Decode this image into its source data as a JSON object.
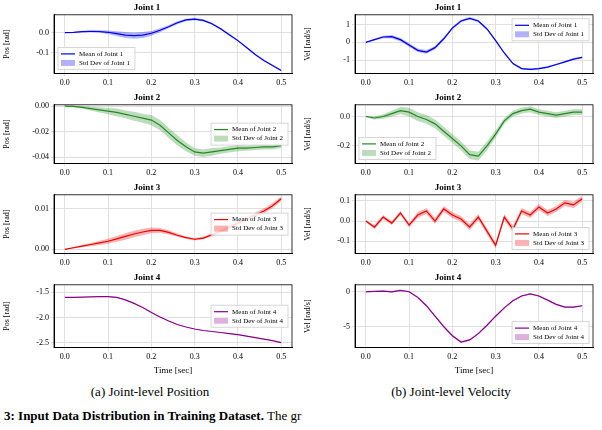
{
  "chart_data": [
    {
      "type": "line",
      "title": "Joint 1",
      "ylabel": "Pos [rad]",
      "x": [
        0,
        0.02,
        0.04,
        0.06,
        0.08,
        0.1,
        0.12,
        0.14,
        0.16,
        0.18,
        0.2,
        0.22,
        0.24,
        0.26,
        0.28,
        0.3,
        0.32,
        0.34,
        0.36,
        0.38,
        0.4,
        0.42,
        0.44,
        0.46,
        0.48,
        0.5
      ],
      "series": [
        {
          "name": "Mean of Joint 1",
          "std_name": "Std Dev of Joint 1",
          "color": "#0000ee",
          "values": [
            0.0,
            0.002,
            0.005,
            0.007,
            0.006,
            0.002,
            -0.005,
            -0.012,
            -0.015,
            -0.012,
            -0.003,
            0.012,
            0.03,
            0.05,
            0.064,
            0.068,
            0.062,
            0.045,
            0.02,
            -0.01,
            -0.04,
            -0.075,
            -0.11,
            -0.14,
            -0.165,
            -0.19
          ],
          "std": [
            0.001,
            0.002,
            0.003,
            0.004,
            0.006,
            0.009,
            0.012,
            0.015,
            0.016,
            0.015,
            0.012,
            0.01,
            0.008,
            0.007,
            0.006,
            0.006,
            0.006,
            0.005,
            0.005,
            0.005,
            0.005,
            0.004,
            0.004,
            0.004,
            0.004,
            0.004
          ]
        }
      ],
      "xlim": [
        -0.025,
        0.525
      ],
      "xticks": [
        {
          "value": 0,
          "label": "0.0"
        },
        0.1,
        0.2,
        0.3,
        0.4,
        0.5
      ],
      "ylim": [
        -0.205,
        0.09
      ],
      "yticks": [
        {
          "value": -0.1,
          "label": "-0.1"
        },
        {
          "value": 0,
          "label": "0.0"
        }
      ],
      "grid": true,
      "legend": "lower left"
    },
    {
      "type": "line",
      "title": "Joint 2",
      "ylabel": "Pos [rad]",
      "x": [
        0,
        0.02,
        0.04,
        0.06,
        0.08,
        0.1,
        0.12,
        0.14,
        0.16,
        0.18,
        0.2,
        0.22,
        0.24,
        0.26,
        0.28,
        0.3,
        0.32,
        0.34,
        0.36,
        0.38,
        0.4,
        0.42,
        0.44,
        0.46,
        0.48,
        0.5
      ],
      "series": [
        {
          "name": "Mean of Joint 2",
          "std_name": "Std Dev of Joint 2",
          "color": "#228b22",
          "values": [
            0.0,
            -0.0003,
            -0.001,
            -0.002,
            -0.003,
            -0.004,
            -0.005,
            -0.0065,
            -0.008,
            -0.0095,
            -0.011,
            -0.015,
            -0.021,
            -0.027,
            -0.032,
            -0.036,
            -0.037,
            -0.036,
            -0.035,
            -0.034,
            -0.033,
            -0.033,
            -0.0325,
            -0.032,
            -0.032,
            -0.031
          ],
          "std": [
            0.0001,
            0.0005,
            0.001,
            0.0015,
            0.002,
            0.0025,
            0.003,
            0.003,
            0.0035,
            0.0035,
            0.004,
            0.004,
            0.004,
            0.004,
            0.0035,
            0.003,
            0.003,
            0.003,
            0.0025,
            0.0025,
            0.0025,
            0.002,
            0.002,
            0.002,
            0.002,
            0.002
          ]
        }
      ],
      "xlim": [
        -0.025,
        0.525
      ],
      "xticks": [
        {
          "value": 0,
          "label": "0.0"
        },
        0.1,
        0.2,
        0.3,
        0.4,
        0.5
      ],
      "ylim": [
        -0.045,
        0.001
      ],
      "yticks": [
        {
          "value": -0.04,
          "label": "-0.04"
        },
        {
          "value": -0.02,
          "label": "-0.02"
        },
        {
          "value": 0,
          "label": "0.00"
        }
      ],
      "grid": true,
      "legend": "right"
    },
    {
      "type": "line",
      "title": "Joint 3",
      "ylabel": "Pos [rad]",
      "x": [
        0,
        0.02,
        0.04,
        0.06,
        0.08,
        0.1,
        0.12,
        0.14,
        0.16,
        0.18,
        0.2,
        0.22,
        0.24,
        0.26,
        0.28,
        0.3,
        0.32,
        0.34,
        0.36,
        0.38,
        0.4,
        0.42,
        0.44,
        0.46,
        0.48,
        0.5
      ],
      "series": [
        {
          "name": "Mean of Joint 3",
          "std_name": "Std Dev of Joint 3",
          "color": "#ee0000",
          "values": [
            0.0,
            0.0004,
            0.0008,
            0.0012,
            0.0016,
            0.002,
            0.0026,
            0.0032,
            0.0038,
            0.0043,
            0.0047,
            0.0047,
            0.0042,
            0.0035,
            0.0029,
            0.0025,
            0.0028,
            0.0036,
            0.0045,
            0.0055,
            0.0065,
            0.0075,
            0.0085,
            0.0095,
            0.0108,
            0.0125
          ],
          "std": [
            0.0001,
            0.0002,
            0.0003,
            0.0004,
            0.0005,
            0.0006,
            0.0007,
            0.0008,
            0.0008,
            0.0008,
            0.0007,
            0.0006,
            0.0005,
            0.0004,
            0.0003,
            0.0003,
            0.0003,
            0.0004,
            0.0005,
            0.0005,
            0.0006,
            0.0006,
            0.0006,
            0.0006,
            0.0006,
            0.0006
          ]
        }
      ],
      "xlim": [
        -0.025,
        0.525
      ],
      "xticks": [
        {
          "value": 0,
          "label": "0.0"
        },
        0.1,
        0.2,
        0.3,
        0.4,
        0.5
      ],
      "ylim": [
        -0.001,
        0.0135
      ],
      "yticks": [
        {
          "value": 0,
          "label": "0.00"
        },
        0.01
      ],
      "grid": true,
      "legend": "right"
    },
    {
      "type": "line",
      "title": "Joint 4",
      "ylabel": "Pos [rad]",
      "xlabel": "Time [sec]",
      "x": [
        0,
        0.02,
        0.04,
        0.06,
        0.08,
        0.1,
        0.12,
        0.14,
        0.16,
        0.18,
        0.2,
        0.22,
        0.24,
        0.26,
        0.28,
        0.3,
        0.32,
        0.34,
        0.36,
        0.38,
        0.4,
        0.42,
        0.44,
        0.46,
        0.48,
        0.5
      ],
      "series": [
        {
          "name": "Mean of Joint 4",
          "std_name": "Std Dev of Joint 4",
          "color": "#8b008b",
          "values": [
            -1.6,
            -1.6,
            -1.595,
            -1.59,
            -1.585,
            -1.585,
            -1.6,
            -1.65,
            -1.72,
            -1.8,
            -1.9,
            -1.99,
            -2.07,
            -2.14,
            -2.19,
            -2.23,
            -2.26,
            -2.28,
            -2.3,
            -2.32,
            -2.34,
            -2.37,
            -2.4,
            -2.43,
            -2.46,
            -2.5
          ],
          "std": [
            0.003,
            0.003,
            0.004,
            0.004,
            0.005,
            0.005,
            0.006,
            0.007,
            0.008,
            0.008,
            0.008,
            0.008,
            0.008,
            0.007,
            0.007,
            0.006,
            0.006,
            0.006,
            0.006,
            0.006,
            0.006,
            0.006,
            0.006,
            0.006,
            0.006,
            0.006
          ]
        }
      ],
      "xlim": [
        -0.025,
        0.525
      ],
      "xticks": [
        {
          "value": 0,
          "label": "0.0"
        },
        0.1,
        0.2,
        0.3,
        0.4,
        0.5
      ],
      "ylim": [
        -2.6,
        -1.35
      ],
      "yticks": [
        -2.5,
        {
          "value": -2,
          "label": "-2.0"
        },
        -1.5
      ],
      "grid": true,
      "legend": "right"
    },
    {
      "type": "line",
      "title": "Joint 1",
      "ylabel": "Vel [rad/s]",
      "x": [
        0,
        0.02,
        0.04,
        0.06,
        0.08,
        0.1,
        0.12,
        0.14,
        0.16,
        0.18,
        0.2,
        0.22,
        0.24,
        0.26,
        0.28,
        0.3,
        0.32,
        0.34,
        0.36,
        0.38,
        0.4,
        0.42,
        0.44,
        0.46,
        0.48,
        0.5
      ],
      "series": [
        {
          "name": "Mean of Joint 1",
          "std_name": "Std Dev of Joint 1",
          "color": "#0000ee",
          "values": [
            0.0,
            0.15,
            0.3,
            0.32,
            0.15,
            -0.15,
            -0.45,
            -0.55,
            -0.3,
            0.2,
            0.8,
            1.2,
            1.35,
            1.2,
            0.75,
            0.1,
            -0.6,
            -1.2,
            -1.48,
            -1.52,
            -1.48,
            -1.4,
            -1.25,
            -1.1,
            -0.95,
            -0.85
          ],
          "std": [
            0.02,
            0.05,
            0.07,
            0.09,
            0.1,
            0.1,
            0.1,
            0.1,
            0.09,
            0.08,
            0.08,
            0.07,
            0.07,
            0.07,
            0.06,
            0.06,
            0.06,
            0.05,
            0.05,
            0.05,
            0.05,
            0.05,
            0.05,
            0.05,
            0.05,
            0.05
          ]
        }
      ],
      "xlim": [
        -0.025,
        0.525
      ],
      "xticks": [
        {
          "value": 0,
          "label": "0.0"
        },
        0.1,
        0.2,
        0.3,
        0.4,
        0.5
      ],
      "ylim": [
        -1.75,
        1.55
      ],
      "yticks": [
        -1,
        0,
        1
      ],
      "grid": true,
      "legend": "upper right"
    },
    {
      "type": "line",
      "title": "Joint 2",
      "ylabel": "Vel [rad/s]",
      "x": [
        0,
        0.02,
        0.04,
        0.06,
        0.08,
        0.1,
        0.12,
        0.14,
        0.16,
        0.18,
        0.2,
        0.22,
        0.24,
        0.26,
        0.28,
        0.3,
        0.32,
        0.34,
        0.36,
        0.38,
        0.4,
        0.42,
        0.44,
        0.46,
        0.48,
        0.5
      ],
      "series": [
        {
          "name": "Mean of Joint 2",
          "std_name": "Std Dev of Joint 2",
          "color": "#228b22",
          "values": [
            0.0,
            -0.01,
            0.0,
            0.02,
            0.04,
            0.03,
            0.0,
            -0.02,
            -0.05,
            -0.1,
            -0.15,
            -0.2,
            -0.26,
            -0.27,
            -0.2,
            -0.12,
            -0.03,
            0.02,
            0.04,
            0.05,
            0.03,
            0.02,
            0.01,
            0.02,
            0.03,
            0.03
          ],
          "std": [
            0.005,
            0.01,
            0.015,
            0.02,
            0.025,
            0.03,
            0.03,
            0.03,
            0.03,
            0.03,
            0.03,
            0.03,
            0.03,
            0.03,
            0.03,
            0.025,
            0.02,
            0.02,
            0.02,
            0.02,
            0.02,
            0.02,
            0.02,
            0.02,
            0.02,
            0.02
          ]
        }
      ],
      "xlim": [
        -0.025,
        0.525
      ],
      "xticks": [
        {
          "value": 0,
          "label": "0.0"
        },
        0.1,
        0.2,
        0.3,
        0.4,
        0.5
      ],
      "ylim": [
        -0.32,
        0.08
      ],
      "yticks": [
        -0.2,
        {
          "value": 0,
          "label": "0.0"
        }
      ],
      "grid": true,
      "legend": "lower left"
    },
    {
      "type": "line",
      "title": "Joint 3",
      "ylabel": "Vel [rad/s]",
      "x": [
        0,
        0.02,
        0.04,
        0.06,
        0.08,
        0.1,
        0.12,
        0.14,
        0.16,
        0.18,
        0.2,
        0.22,
        0.24,
        0.26,
        0.28,
        0.3,
        0.32,
        0.34,
        0.36,
        0.38,
        0.4,
        0.42,
        0.44,
        0.46,
        0.48,
        0.5
      ],
      "series": [
        {
          "name": "Mean of Joint 3",
          "std_name": "Std Dev of Joint 3",
          "color": "#ee0000",
          "values": [
            0.0,
            -0.03,
            0.02,
            -0.01,
            0.04,
            -0.02,
            0.03,
            0.05,
            0.0,
            0.06,
            0.03,
            0.01,
            -0.03,
            0.02,
            -0.05,
            -0.12,
            0.02,
            -0.04,
            0.05,
            0.03,
            0.07,
            0.04,
            0.06,
            0.09,
            0.08,
            0.11
          ],
          "std": [
            0.005,
            0.01,
            0.01,
            0.01,
            0.01,
            0.01,
            0.015,
            0.015,
            0.015,
            0.015,
            0.015,
            0.015,
            0.015,
            0.015,
            0.015,
            0.015,
            0.015,
            0.015,
            0.015,
            0.015,
            0.015,
            0.015,
            0.015,
            0.015,
            0.015,
            0.015
          ]
        }
      ],
      "xlim": [
        -0.025,
        0.525
      ],
      "xticks": [
        {
          "value": 0,
          "label": "0.0"
        },
        0.1,
        0.2,
        0.3,
        0.4,
        0.5
      ],
      "ylim": [
        -0.16,
        0.13
      ],
      "yticks": [
        -0.1,
        {
          "value": 0,
          "label": "0.0"
        },
        0.1
      ],
      "grid": true,
      "legend": "lower right"
    },
    {
      "type": "line",
      "title": "Joint 4",
      "ylabel": "Vel [rad/s]",
      "xlabel": "Time [sec]",
      "x": [
        0,
        0.02,
        0.04,
        0.06,
        0.08,
        0.1,
        0.12,
        0.14,
        0.16,
        0.18,
        0.2,
        0.22,
        0.24,
        0.26,
        0.28,
        0.3,
        0.32,
        0.34,
        0.36,
        0.38,
        0.4,
        0.42,
        0.44,
        0.46,
        0.48,
        0.5
      ],
      "series": [
        {
          "name": "Mean of Joint 4",
          "std_name": "Std Dev of Joint 4",
          "color": "#8b008b",
          "values": [
            0.0,
            0.05,
            0.1,
            0.0,
            0.2,
            0.0,
            -0.8,
            -2.0,
            -3.5,
            -5.0,
            -6.3,
            -7.2,
            -6.9,
            -6.0,
            -4.8,
            -3.5,
            -2.3,
            -1.3,
            -0.6,
            -0.3,
            -0.6,
            -1.2,
            -1.8,
            -2.2,
            -2.2,
            -2.0
          ],
          "std": [
            0.02,
            0.05,
            0.08,
            0.1,
            0.1,
            0.12,
            0.15,
            0.15,
            0.15,
            0.15,
            0.15,
            0.15,
            0.15,
            0.12,
            0.12,
            0.1,
            0.1,
            0.1,
            0.1,
            0.1,
            0.1,
            0.1,
            0.1,
            0.1,
            0.1,
            0.1
          ]
        }
      ],
      "xlim": [
        -0.025,
        0.525
      ],
      "xticks": [
        {
          "value": 0,
          "label": "0.0"
        },
        0.1,
        0.2,
        0.3,
        0.4,
        0.5
      ],
      "ylim": [
        -8,
        1
      ],
      "yticks": [
        -5,
        0
      ],
      "grid": true,
      "legend": "lower right"
    }
  ],
  "captions": [
    "(a) Joint-level Position",
    "(b) Joint-level Velocity"
  ],
  "figure_caption": {
    "bold": "3: Input Data Distribution in Training Dataset.",
    "rest": "The gr"
  }
}
